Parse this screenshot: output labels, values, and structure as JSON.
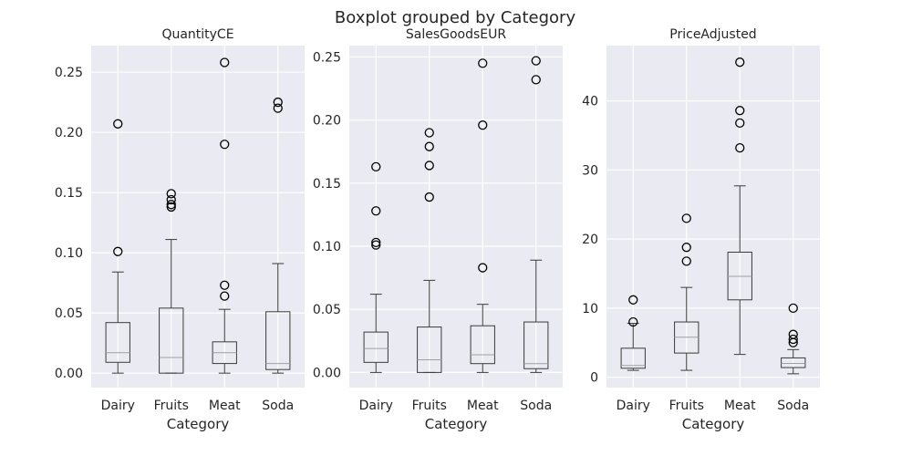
{
  "suptitle": "Boxplot grouped by Category",
  "chart_data": [
    {
      "type": "box",
      "title": "QuantityCE",
      "xlabel": "Category",
      "ylabel": "",
      "categories": [
        "Dairy",
        "Fruits",
        "Meat",
        "Soda"
      ],
      "ylim": [
        -0.012,
        0.272
      ],
      "yticks": [
        0.0,
        0.05,
        0.1,
        0.15,
        0.2,
        0.25
      ],
      "ytick_labels": [
        "0.00",
        "0.05",
        "0.10",
        "0.15",
        "0.20",
        "0.25"
      ],
      "boxes": [
        {
          "min": 0.0,
          "q1": 0.009,
          "median": 0.017,
          "q3": 0.042,
          "max": 0.084,
          "outliers": [
            0.101,
            0.207
          ]
        },
        {
          "min": 0.0,
          "q1": 0.0,
          "median": 0.013,
          "q3": 0.054,
          "max": 0.111,
          "outliers": [
            0.138,
            0.14,
            0.144,
            0.149
          ]
        },
        {
          "min": 0.0,
          "q1": 0.008,
          "median": 0.017,
          "q3": 0.026,
          "max": 0.053,
          "outliers": [
            0.064,
            0.073,
            0.19,
            0.258
          ]
        },
        {
          "min": 0.0,
          "q1": 0.003,
          "median": 0.008,
          "q3": 0.051,
          "max": 0.091,
          "outliers": [
            0.22,
            0.225
          ]
        }
      ]
    },
    {
      "type": "box",
      "title": "SalesGoodsEUR",
      "xlabel": "Category",
      "ylabel": "",
      "categories": [
        "Dairy",
        "Fruits",
        "Meat",
        "Soda"
      ],
      "ylim": [
        -0.012,
        0.259
      ],
      "yticks": [
        0.0,
        0.05,
        0.1,
        0.15,
        0.2,
        0.25
      ],
      "ytick_labels": [
        "0.00",
        "0.05",
        "0.10",
        "0.15",
        "0.20",
        "0.25"
      ],
      "boxes": [
        {
          "min": 0.0,
          "q1": 0.008,
          "median": 0.019,
          "q3": 0.032,
          "max": 0.062,
          "outliers": [
            0.101,
            0.103,
            0.128,
            0.163
          ]
        },
        {
          "min": 0.0,
          "q1": 0.0,
          "median": 0.01,
          "q3": 0.036,
          "max": 0.073,
          "outliers": [
            0.139,
            0.164,
            0.179,
            0.19
          ]
        },
        {
          "min": 0.0,
          "q1": 0.007,
          "median": 0.014,
          "q3": 0.037,
          "max": 0.054,
          "outliers": [
            0.083,
            0.196,
            0.245
          ]
        },
        {
          "min": 0.0,
          "q1": 0.003,
          "median": 0.007,
          "q3": 0.04,
          "max": 0.089,
          "outliers": [
            0.232,
            0.247
          ]
        }
      ]
    },
    {
      "type": "box",
      "title": "PriceAdjusted",
      "xlabel": "Category",
      "ylabel": "",
      "categories": [
        "Dairy",
        "Fruits",
        "Meat",
        "Soda"
      ],
      "ylim": [
        -1.5,
        48
      ],
      "yticks": [
        0,
        10,
        20,
        30,
        40
      ],
      "ytick_labels": [
        "0",
        "10",
        "20",
        "30",
        "40"
      ],
      "boxes": [
        {
          "min": 1.0,
          "q1": 1.3,
          "median": 1.7,
          "q3": 4.2,
          "max": 7.8,
          "outliers": [
            8.0,
            11.2
          ]
        },
        {
          "min": 1.0,
          "q1": 3.5,
          "median": 5.8,
          "q3": 8.0,
          "max": 13.0,
          "outliers": [
            16.8,
            18.8,
            23.0
          ]
        },
        {
          "min": 3.3,
          "q1": 11.2,
          "median": 14.6,
          "q3": 18.1,
          "max": 27.7,
          "outliers": [
            33.2,
            36.8,
            38.6,
            45.6
          ]
        },
        {
          "min": 0.5,
          "q1": 1.4,
          "median": 2.0,
          "q3": 2.8,
          "max": 4.0,
          "outliers": [
            5.0,
            5.5,
            6.2,
            10.0
          ]
        }
      ]
    }
  ]
}
